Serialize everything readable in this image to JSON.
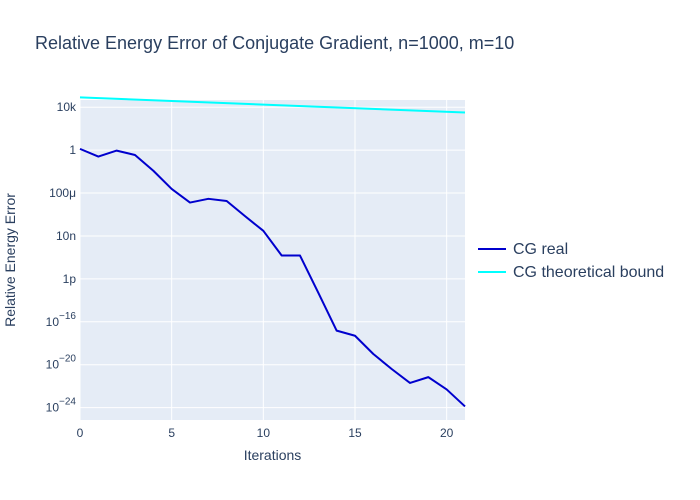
{
  "chart_data": {
    "type": "line",
    "title": "Relative Energy Error of Conjugate Gradient, n=1000, m=10",
    "xlabel": "Iterations",
    "ylabel": "Relative Energy Error",
    "xlim": [
      0,
      21
    ],
    "ylog": true,
    "ylim_exp": [
      -25.15,
      4.67
    ],
    "grid": true,
    "legend_position": "right",
    "x_ticks": [
      0,
      5,
      10,
      15,
      20
    ],
    "y_ticks": [
      {
        "exp": 4,
        "base": "10k",
        "sup": ""
      },
      {
        "exp": 0,
        "base": "1",
        "sup": ""
      },
      {
        "exp": -4,
        "base": "100μ",
        "sup": ""
      },
      {
        "exp": -8,
        "base": "10n",
        "sup": ""
      },
      {
        "exp": -12,
        "base": "1p",
        "sup": ""
      },
      {
        "exp": -16,
        "base": "10",
        "sup": "−16"
      },
      {
        "exp": -20,
        "base": "10",
        "sup": "−20"
      },
      {
        "exp": -24,
        "base": "10",
        "sup": "−24"
      }
    ],
    "series": [
      {
        "name": "CG real",
        "color": "#0000cd",
        "x": [
          0,
          1,
          2,
          3,
          4,
          5,
          6,
          7,
          8,
          9,
          10,
          11,
          12,
          13,
          14,
          15,
          16,
          17,
          18,
          19,
          20,
          21
        ],
        "y": [
          1.3,
          0.25,
          0.9,
          0.35,
          0.012,
          0.00024,
          1.3e-05,
          2.9e-05,
          1.8e-05,
          7e-07,
          3e-08,
          1.5e-10,
          1.5e-10,
          5e-14,
          1.5e-17,
          5e-18,
          1e-19,
          4e-21,
          2e-22,
          7e-22,
          5e-23,
          1.3e-24
        ]
      },
      {
        "name": "CG theoretical bound",
        "color": "#00ffff",
        "x": [
          0,
          21
        ],
        "y": [
          82000,
          3200
        ]
      }
    ]
  }
}
